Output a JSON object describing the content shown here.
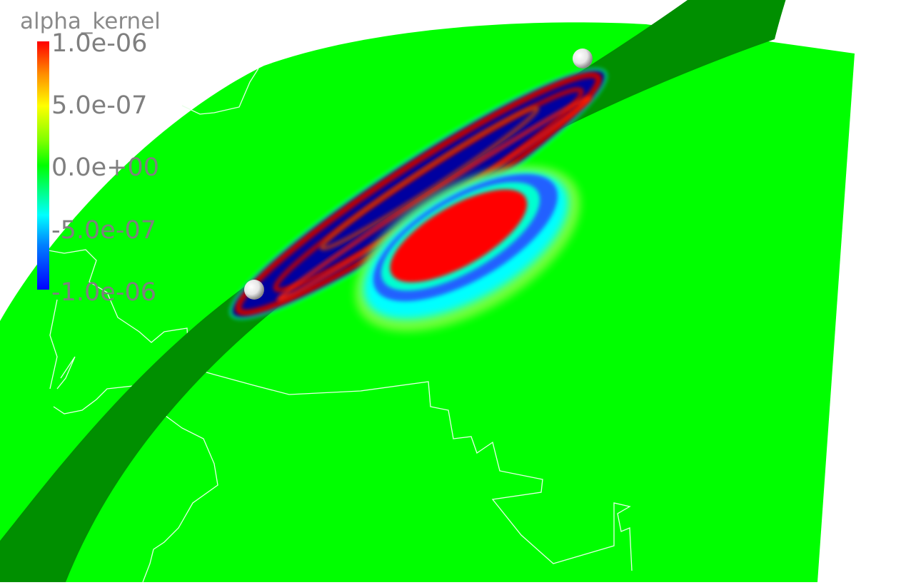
{
  "colorbar": {
    "title": "alpha_kernel",
    "ticks": [
      "1.0e-06",
      "5.0e-07",
      "0.0e+00",
      "-5.0e-07",
      "-1.0e-06"
    ],
    "range": [
      -1e-06,
      1e-06
    ],
    "colormap": "jet (blue-cyan-green-yellow-red)"
  },
  "colors": {
    "surface": "#00ff00",
    "band": "#008f00",
    "positive": "#ff0000",
    "negative": "#0000a0",
    "outline": "#ffffff",
    "label": "#7f7f7f"
  },
  "markers": [
    "source-sphere",
    "receiver-sphere"
  ]
}
